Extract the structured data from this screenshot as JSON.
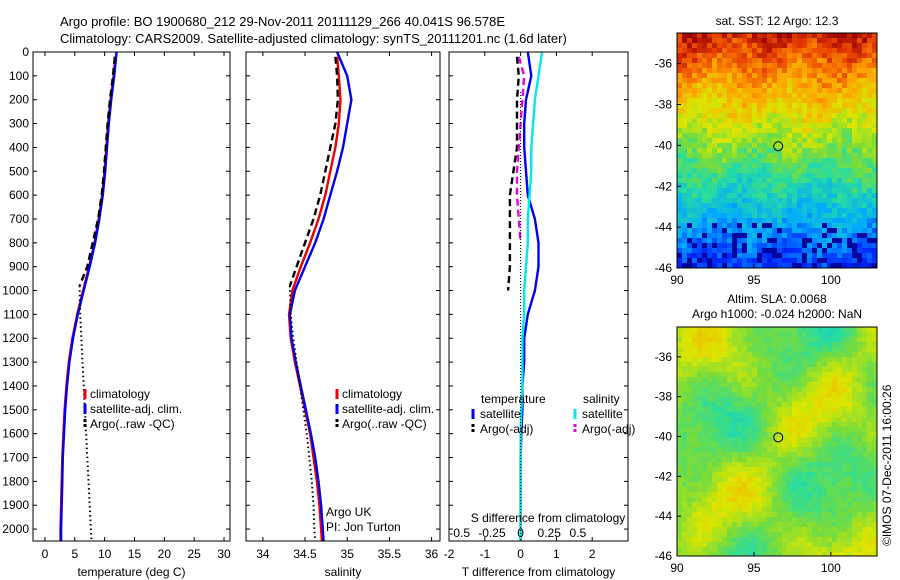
{
  "header": {
    "line1": "Argo profile: BO 1900680_212 29-Nov-2011 20111129_266 40.041S 96.578E",
    "line2": "Climatology: CARS2009. Satellite-adjusted climatology: synTS_20111201.nc (1.6d later)"
  },
  "side_label": "©IMOS 07-Dec-2011 16:00:26",
  "colors": {
    "climatology": "#ee0000",
    "satellite": "#0000ee",
    "argo": "#000000",
    "sal_satellite": "#00e8ee",
    "sal_argo": "#e800e8"
  },
  "chart_data": [
    {
      "id": "temperature",
      "type": "line",
      "xlabel": "temperature (deg C)",
      "ylabel": "",
      "xlim": [
        -2,
        31
      ],
      "ylim": [
        2050,
        0
      ],
      "yticks": [
        0,
        100,
        200,
        300,
        400,
        500,
        600,
        700,
        800,
        900,
        1000,
        1100,
        1200,
        1300,
        1400,
        1500,
        1600,
        1700,
        1800,
        1900,
        2000
      ],
      "xticks": [
        0,
        5,
        10,
        15,
        20,
        25,
        30
      ],
      "legend": [
        "climatology",
        "satellite-adj. clim.",
        "Argo(..raw -QC)"
      ],
      "legend_position": "lower-right",
      "series": [
        {
          "name": "climatology",
          "style": "solid",
          "color": "#ee0000",
          "x": [
            11.8,
            11.5,
            11.0,
            10.6,
            10.3,
            10.0,
            9.6,
            9.0,
            8.3,
            7.4,
            6.4,
            5.4,
            4.6,
            4.0,
            3.6,
            3.3,
            3.1,
            2.9,
            2.8,
            2.7,
            2.6,
            2.6
          ],
          "y": [
            20,
            100,
            200,
            300,
            400,
            500,
            600,
            700,
            800,
            900,
            1000,
            1100,
            1200,
            1300,
            1400,
            1500,
            1600,
            1700,
            1800,
            1900,
            2000,
            2050
          ]
        },
        {
          "name": "satellite-adj. clim.",
          "style": "solid",
          "color": "#0000ee",
          "x": [
            12.0,
            11.6,
            11.1,
            10.7,
            10.4,
            10.1,
            9.7,
            9.1,
            8.4,
            7.5,
            6.5,
            5.5,
            4.7,
            4.1,
            3.7,
            3.4,
            3.2,
            3.0,
            2.9,
            2.8,
            2.7,
            2.7
          ],
          "y": [
            0,
            100,
            200,
            300,
            400,
            500,
            600,
            700,
            800,
            900,
            1000,
            1100,
            1200,
            1300,
            1400,
            1500,
            1600,
            1700,
            1800,
            1900,
            2000,
            2050
          ]
        },
        {
          "name": "Argo(..raw -QC)",
          "style": "dash",
          "color": "#000000",
          "x": [
            11.7,
            11.4,
            10.9,
            10.5,
            10.2,
            9.9,
            9.5,
            8.9,
            8.0,
            7.1,
            5.8
          ],
          "y": [
            20,
            100,
            200,
            300,
            400,
            500,
            600,
            700,
            800,
            900,
            980
          ]
        },
        {
          "name": "Argo raw",
          "style": "dot",
          "color": "#000000",
          "x": [
            5.8,
            5.9,
            6.1,
            6.3,
            6.5,
            6.7,
            6.9,
            7.1,
            7.3,
            7.5,
            7.7,
            7.8
          ],
          "y": [
            980,
            1100,
            1200,
            1300,
            1400,
            1500,
            1600,
            1700,
            1800,
            1900,
            2000,
            2050
          ]
        }
      ]
    },
    {
      "id": "salinity",
      "type": "line",
      "xlabel": "salinity",
      "ylabel": "",
      "xlim": [
        33.8,
        36.1
      ],
      "ylim": [
        2050,
        0
      ],
      "xticks": [
        34,
        34.5,
        35,
        35.5,
        36
      ],
      "legend": [
        "climatology",
        "satellite-adj. clim.",
        "Argo(..raw -QC)"
      ],
      "legend_position": "lower-right",
      "annotation": [
        "Argo UK",
        "PI: Jon Turton"
      ],
      "series": [
        {
          "name": "climatology",
          "style": "solid",
          "color": "#ee0000",
          "x": [
            34.88,
            34.9,
            34.92,
            34.9,
            34.86,
            34.8,
            34.74,
            34.66,
            34.56,
            34.45,
            34.35,
            34.31,
            34.33,
            34.38,
            34.44,
            34.5,
            34.56,
            34.6,
            34.64,
            34.67,
            34.69,
            34.7
          ],
          "y": [
            20,
            100,
            200,
            300,
            400,
            500,
            600,
            700,
            800,
            900,
            1000,
            1100,
            1200,
            1300,
            1400,
            1500,
            1600,
            1700,
            1800,
            1900,
            2000,
            2050
          ]
        },
        {
          "name": "satellite-adj. clim.",
          "style": "solid",
          "color": "#0000ee",
          "x": [
            34.88,
            35.0,
            35.05,
            35.0,
            34.95,
            34.88,
            34.8,
            34.72,
            34.62,
            34.5,
            34.38,
            34.32,
            34.34,
            34.39,
            34.45,
            34.51,
            34.57,
            34.62,
            34.66,
            34.69,
            34.71,
            34.72
          ],
          "y": [
            0,
            100,
            200,
            300,
            400,
            500,
            600,
            700,
            800,
            900,
            1000,
            1100,
            1200,
            1300,
            1400,
            1500,
            1600,
            1700,
            1800,
            1900,
            2000,
            2050
          ]
        },
        {
          "name": "Argo(..raw -QC)",
          "style": "dash",
          "color": "#000000",
          "x": [
            34.86,
            34.88,
            34.89,
            34.86,
            34.8,
            34.74,
            34.68,
            34.6,
            34.5,
            34.4,
            34.32
          ],
          "y": [
            20,
            100,
            200,
            300,
            400,
            500,
            600,
            700,
            800,
            900,
            980
          ]
        },
        {
          "name": "Argo raw",
          "style": "dot",
          "color": "#000000",
          "x": [
            34.32,
            34.33,
            34.36,
            34.4,
            34.44,
            34.48,
            34.52,
            34.55,
            34.58,
            34.6,
            34.61,
            34.62
          ],
          "y": [
            980,
            1100,
            1200,
            1300,
            1400,
            1500,
            1600,
            1700,
            1800,
            1900,
            2000,
            2050
          ]
        }
      ]
    },
    {
      "id": "differences",
      "type": "line",
      "xlabel": "T difference from climatology",
      "xlabel_top": "S difference from climatology",
      "ylabel": "",
      "xlim": [
        -2,
        3
      ],
      "ylim": [
        2050,
        0
      ],
      "xticks": [
        -2,
        -1,
        0,
        1,
        2
      ],
      "xticklabels_top": [
        "-0.5",
        "-0.25",
        "0",
        "0.25",
        "0.5"
      ],
      "legend_titles": [
        "temperature",
        "salinity"
      ],
      "legend": [
        "satellite",
        "Argo(-adj)",
        "satellite",
        "Argo(-adj)"
      ],
      "legend_position": "lower-center",
      "series": [
        {
          "name": "temperature satellite",
          "style": "solid",
          "color": "#0000ee",
          "x": [
            0.2,
            0.3,
            0.15,
            0.1,
            0.1,
            0.15,
            0.2,
            0.4,
            0.5,
            0.5,
            0.4,
            0.2,
            0.1,
            0.1,
            0.05,
            0.05,
            0.02,
            0.0,
            0.0,
            0.0,
            0.0,
            0.0
          ],
          "y": [
            0,
            100,
            200,
            300,
            400,
            500,
            600,
            700,
            800,
            900,
            1000,
            1100,
            1200,
            1300,
            1400,
            1500,
            1600,
            1700,
            1800,
            1900,
            2000,
            2050
          ]
        },
        {
          "name": "temperature Argo(-adj)",
          "style": "dash",
          "color": "#000000",
          "x": [
            -0.1,
            -0.05,
            -0.1,
            -0.1,
            -0.1,
            -0.2,
            -0.3,
            -0.3,
            -0.3,
            -0.3,
            -0.35
          ],
          "y": [
            20,
            100,
            200,
            300,
            400,
            500,
            600,
            700,
            800,
            900,
            1000
          ]
        },
        {
          "name": "salinity satellite",
          "style": "solid",
          "color": "#00e8ee",
          "x": [
            0.6,
            0.5,
            0.4,
            0.35,
            0.3,
            0.3,
            0.25,
            0.2,
            0.2,
            0.15,
            0.1,
            0.1,
            0.05,
            0.05,
            0.05,
            0.02,
            0.0,
            0.0,
            0.0,
            0.0,
            0.0,
            0.0
          ],
          "y": [
            0,
            100,
            200,
            300,
            400,
            500,
            600,
            700,
            800,
            900,
            1000,
            1100,
            1200,
            1300,
            1400,
            1500,
            1600,
            1700,
            1800,
            1900,
            2000,
            2050
          ]
        },
        {
          "name": "salinity Argo(-adj)",
          "style": "dash",
          "color": "#e800e8",
          "x": [
            -0.05,
            0.1,
            0.05,
            0.0,
            -0.05,
            -0.1,
            -0.1,
            -0.05,
            0.0
          ],
          "y": [
            20,
            100,
            200,
            300,
            400,
            500,
            600,
            700,
            800
          ]
        }
      ]
    },
    {
      "id": "sst_map",
      "type": "heatmap",
      "title": "sat. SST: 12 Argo: 12.3",
      "xlim": [
        90,
        103
      ],
      "ylim": [
        -46,
        -34.5
      ],
      "xticks": [
        90,
        95,
        100
      ],
      "yticks": [
        -36,
        -38,
        -40,
        -42,
        -44,
        -46
      ],
      "marker": {
        "lon": 96.578,
        "lat": -40.041
      }
    },
    {
      "id": "sla_map",
      "type": "heatmap",
      "title": "Altim. SLA: 0.0068",
      "subtitle": "Argo h1000: -0.024 h2000: NaN",
      "xlim": [
        90,
        103
      ],
      "ylim": [
        -46,
        -34.5
      ],
      "xticks": [
        90,
        95,
        100
      ],
      "yticks": [
        -36,
        -38,
        -40,
        -42,
        -44,
        -46
      ],
      "marker": {
        "lon": 96.578,
        "lat": -40.041
      }
    }
  ]
}
